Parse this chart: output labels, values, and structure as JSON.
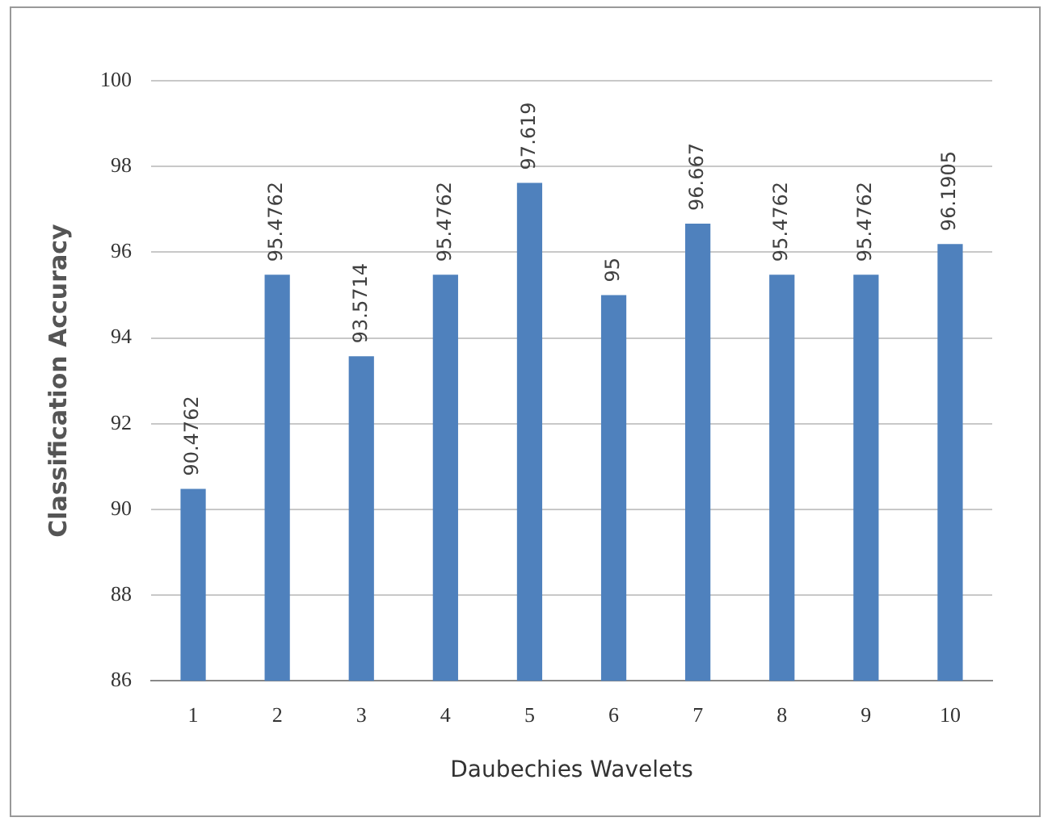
{
  "chart_data": {
    "type": "bar",
    "xlabel": "Daubechies Wavelets",
    "ylabel": "Classification Accuracy",
    "categories": [
      "1",
      "2",
      "3",
      "4",
      "5",
      "6",
      "7",
      "8",
      "9",
      "10"
    ],
    "values": [
      90.4762,
      95.4762,
      93.5714,
      95.4762,
      97.619,
      95,
      96.667,
      95.4762,
      95.4762,
      96.1905
    ],
    "color": "#4f81bd",
    "ylim": [
      86,
      100
    ],
    "yticks": [
      86,
      88,
      90,
      92,
      94,
      96,
      98,
      100
    ],
    "grid": "y",
    "data_labels": true,
    "legend": false
  }
}
